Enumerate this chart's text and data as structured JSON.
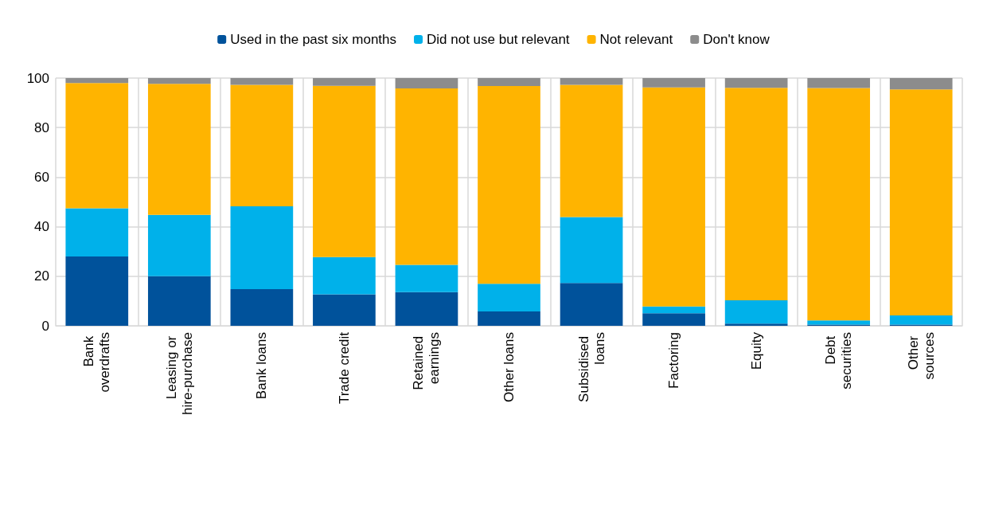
{
  "chart_data": {
    "type": "bar",
    "stacked": true,
    "categories": [
      "Bank overdrafts",
      "Leasing or hire-purchase",
      "Bank loans",
      "Trade credit",
      "Retained earnings",
      "Other loans",
      "Subsidised loans",
      "Factoring",
      "Equity",
      "Debt securities",
      "Other sources"
    ],
    "series": [
      {
        "name": "Used in the past six months",
        "color": "#00529b",
        "values": [
          28,
          20,
          14.8,
          12.7,
          13.6,
          5.8,
          17.3,
          5.1,
          0.9,
          0.5,
          0.5
        ]
      },
      {
        "name": "Did not use but relevant",
        "color": "#00b1ea",
        "values": [
          19.4,
          24.8,
          33.4,
          15,
          11,
          11.2,
          26.6,
          2.7,
          9.4,
          1.7,
          3.7
        ]
      },
      {
        "name": "Not relevant",
        "color": "#ffb400",
        "values": [
          50.6,
          52.9,
          49.1,
          69.2,
          71.2,
          79.8,
          53.4,
          88.4,
          85.8,
          93.8,
          91.2
        ]
      },
      {
        "name": "Don't know",
        "color": "#8c8c8c",
        "values": [
          2,
          2.3,
          2.7,
          3.1,
          4.2,
          3.2,
          2.7,
          3.8,
          3.9,
          4,
          4.6
        ]
      }
    ],
    "ylim": [
      0,
      100
    ],
    "yticks": [
      0,
      20,
      40,
      60,
      80,
      100
    ],
    "grid": true,
    "legend": "top"
  }
}
